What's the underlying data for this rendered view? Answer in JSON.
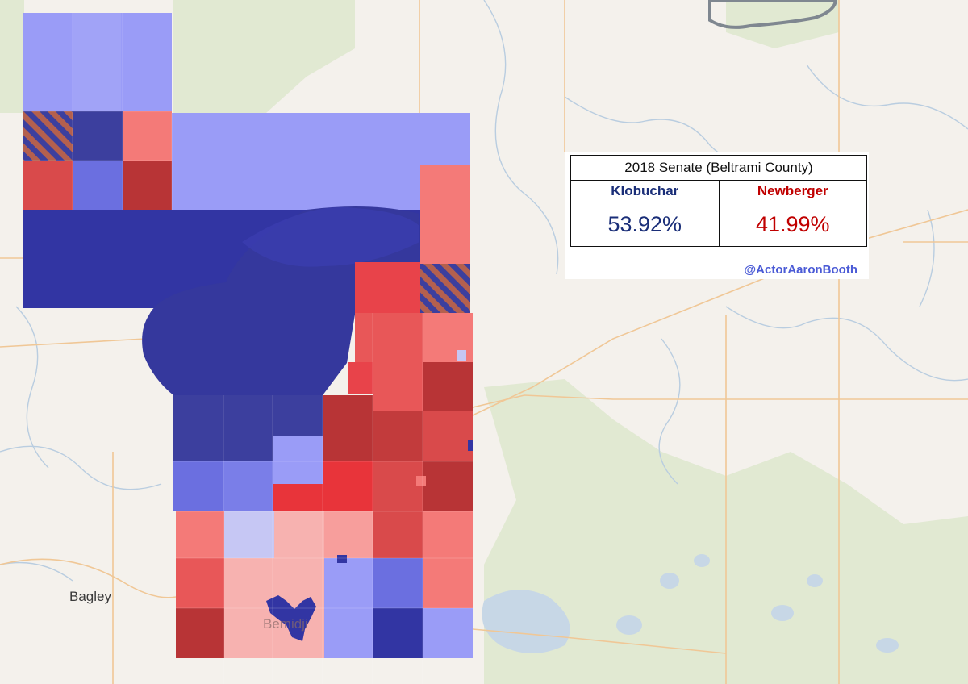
{
  "map": {
    "place_labels": [
      {
        "name": "Bagley"
      },
      {
        "name": "Bemidji"
      }
    ],
    "colors": {
      "background": "#f4f1ec",
      "water": "#c7d7e6",
      "roads": "#f0c796",
      "forest": "#dfe8cf",
      "dem_strong": "#3235a3",
      "dem_medium": "#6b6fe0",
      "dem_light": "#9a9cf7",
      "dem_faint": "#c6c7f4",
      "rep_strong": "#b83436",
      "rep_medium": "#e8434a",
      "rep_light": "#f47a78",
      "rep_faint": "#f7b2b0",
      "tie_stripe": "#b4604e"
    }
  },
  "results": {
    "title": "2018 Senate (Beltrami County)",
    "candidates": [
      {
        "name": "Klobuchar",
        "percent": "53.92%",
        "party": "dem"
      },
      {
        "name": "Newberger",
        "percent": "41.99%",
        "party": "rep"
      }
    ]
  },
  "credit": "@ActorAaronBooth"
}
